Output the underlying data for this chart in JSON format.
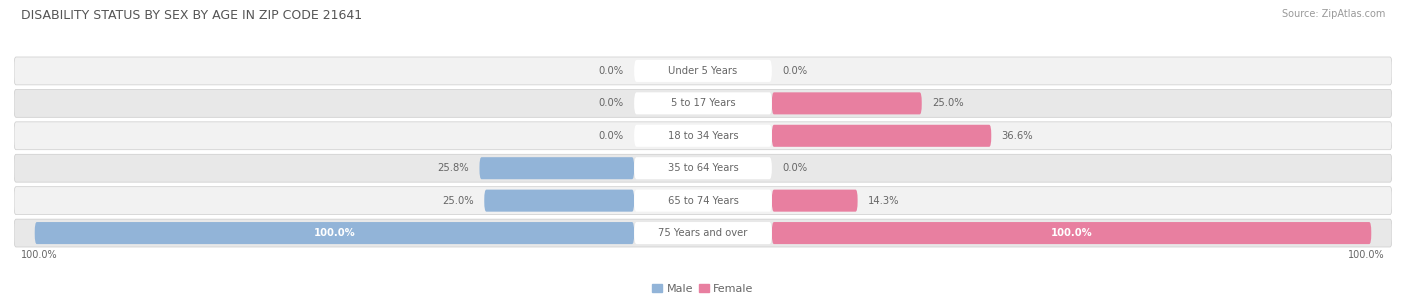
{
  "title": "DISABILITY STATUS BY SEX BY AGE IN ZIP CODE 21641",
  "source": "Source: ZipAtlas.com",
  "categories": [
    "Under 5 Years",
    "5 to 17 Years",
    "18 to 34 Years",
    "35 to 64 Years",
    "65 to 74 Years",
    "75 Years and over"
  ],
  "male_values": [
    0.0,
    0.0,
    0.0,
    25.8,
    25.0,
    100.0
  ],
  "female_values": [
    0.0,
    25.0,
    36.6,
    0.0,
    14.3,
    100.0
  ],
  "male_color": "#92b4d8",
  "female_color": "#e87fa0",
  "max_value": 100.0,
  "figsize": [
    14.06,
    3.04
  ],
  "dpi": 100,
  "row_colors": [
    "#f2f2f2",
    "#e8e8e8"
  ],
  "title_color": "#555555",
  "source_color": "#999999",
  "label_color": "#666666",
  "pct_color": "#666666",
  "pct_color_inside": "#ffffff"
}
